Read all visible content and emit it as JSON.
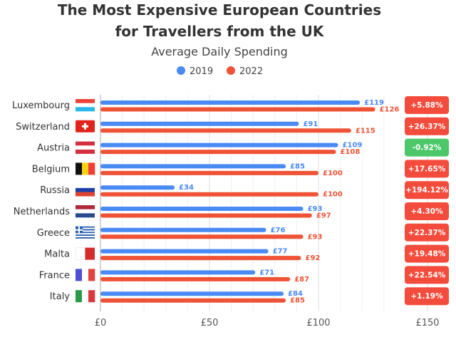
{
  "chart_data": {
    "type": "bar",
    "orientation": "horizontal",
    "title_lines": [
      "The Most Expensive European Countries",
      "for Travellers from the UK"
    ],
    "subtitle": "Average Daily Spending",
    "categories": [
      "Luxembourg",
      "Switzerland",
      "Austria",
      "Belgium",
      "Russia",
      "Netherlands",
      "Greece",
      "Malta",
      "France",
      "Italy"
    ],
    "flags": [
      "luxembourg-flag",
      "switzerland-flag",
      "austria-flag",
      "belgium-flag",
      "russia-flag",
      "netherlands-flag",
      "greece-flag",
      "malta-flag",
      "france-flag",
      "italy-flag"
    ],
    "series": [
      {
        "name": "2019",
        "color": "#4a8af4",
        "values": [
          119,
          91,
          109,
          85,
          34,
          93,
          76,
          77,
          71,
          84
        ],
        "labels": [
          "£119",
          "£91",
          "£109",
          "£85",
          "£34",
          "£93",
          "£76",
          "£77",
          "£71",
          "£84"
        ]
      },
      {
        "name": "2022",
        "color": "#ef5336",
        "values": [
          126,
          115,
          108,
          100,
          100,
          97,
          93,
          92,
          87,
          85
        ],
        "labels": [
          "£126",
          "£115",
          "£108",
          "£100",
          "£100",
          "£97",
          "£93",
          "£92",
          "£87",
          "£85"
        ]
      }
    ],
    "change_labels": [
      "+5.88%",
      "+26.37%",
      "-0.92%",
      "+17.65%",
      "+194.12%",
      "+4.30%",
      "+22.37%",
      "+19.48%",
      "+22.54%",
      "+1.19%"
    ],
    "positive_color": "#f44c3c",
    "negative_color": "#4cc86a",
    "xlim": [
      0,
      150
    ],
    "xticks": [
      0,
      50,
      100,
      150
    ],
    "xtick_labels": [
      "£0",
      "£50",
      "£100",
      "£150"
    ],
    "grid": true,
    "legend_position": "top-center"
  }
}
